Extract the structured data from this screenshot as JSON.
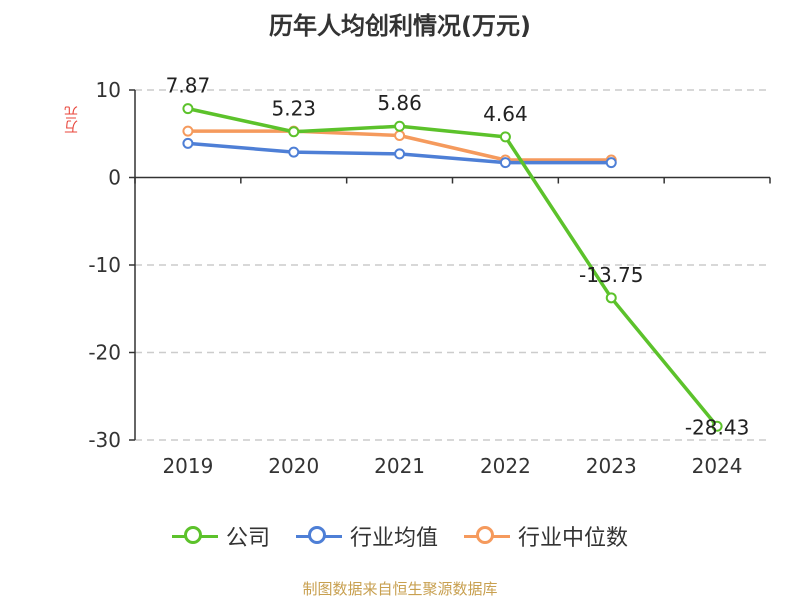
{
  "chart_data": {
    "type": "line",
    "title": "历年人均创利情况(万元)",
    "ylabel": "万元",
    "categories": [
      "2019",
      "2020",
      "2021",
      "2022",
      "2023",
      "2024"
    ],
    "ylim": [
      -30,
      10
    ],
    "yticks": [
      10,
      0,
      -10,
      -20,
      -30
    ],
    "grid": true,
    "legend_position": "bottom",
    "series": [
      {
        "name": "公司",
        "color": "#5cc22b",
        "values": [
          7.87,
          5.23,
          5.86,
          4.64,
          -13.75,
          -28.43
        ],
        "labels": [
          "7.87",
          "5.23",
          "5.86",
          "4.64",
          "-13.75",
          "-28.43"
        ]
      },
      {
        "name": "行业均值",
        "color": "#4e7fd6",
        "values": [
          3.9,
          2.9,
          2.7,
          1.7,
          1.7,
          null
        ]
      },
      {
        "name": "行业中位数",
        "color": "#f59a5d",
        "values": [
          5.3,
          5.3,
          4.8,
          2.0,
          2.0,
          null
        ]
      }
    ]
  },
  "footer": "制图数据来自恒生聚源数据库"
}
